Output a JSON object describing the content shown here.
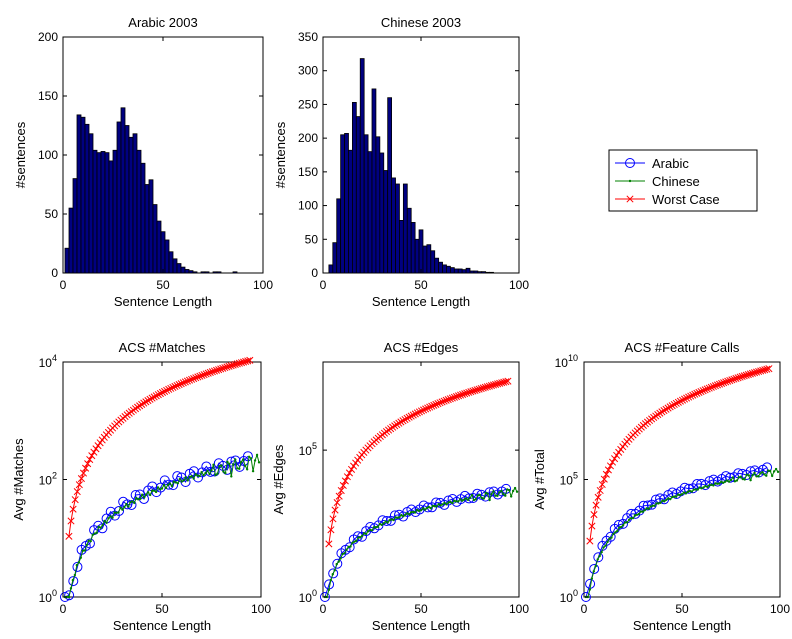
{
  "chart_data": [
    {
      "type": "bar",
      "title": "Arabic 2003",
      "xlabel": "Sentence Length",
      "ylabel": "#sentences",
      "xlim": [
        0,
        100
      ],
      "ylim": [
        0,
        200
      ],
      "xticks": [
        0,
        50,
        100
      ],
      "yticks": [
        0,
        50,
        100,
        150,
        200
      ],
      "bar_color": "#000080",
      "bin_start": 1,
      "bin_width": 2,
      "values": [
        21,
        55,
        80,
        134,
        132,
        126,
        118,
        104,
        102,
        103,
        102,
        95,
        104,
        128,
        140,
        125,
        115,
        118,
        104,
        93,
        75,
        79,
        58,
        44,
        35,
        28,
        18,
        12,
        8,
        5,
        3,
        2,
        1,
        0,
        1,
        1,
        0,
        1,
        1,
        0,
        0,
        0,
        1,
        0,
        0,
        0,
        0,
        0,
        0,
        0
      ]
    },
    {
      "type": "bar",
      "title": "Chinese 2003",
      "xlabel": "Sentence Length",
      "ylabel": "#sentences",
      "xlim": [
        0,
        100
      ],
      "ylim": [
        0,
        350
      ],
      "xticks": [
        0,
        50,
        100
      ],
      "yticks": [
        0,
        50,
        100,
        150,
        200,
        250,
        300,
        350
      ],
      "bar_color": "#000080",
      "bin_start": 3,
      "bin_width": 2,
      "values": [
        12,
        45,
        110,
        205,
        207,
        182,
        253,
        232,
        318,
        205,
        180,
        273,
        202,
        178,
        152,
        260,
        141,
        132,
        78,
        132,
        96,
        75,
        50,
        64,
        40,
        42,
        33,
        22,
        16,
        12,
        10,
        8,
        6,
        6,
        5,
        7,
        3,
        3,
        2,
        2,
        1,
        1,
        0,
        0,
        0,
        0
      ]
    },
    {
      "type": "scatter",
      "title": "ACS #Matches",
      "xlabel": "Sentence Length",
      "ylabel": "Avg #Matches",
      "xlim": [
        0,
        100
      ],
      "ylim": [
        1,
        10000
      ],
      "yscale": "log",
      "xticks": [
        0,
        50,
        100
      ],
      "yticks": [
        {
          "base": "10",
          "exp": "0",
          "value": 1
        },
        {
          "base": "10",
          "exp": "2",
          "value": 100
        },
        {
          "base": "10",
          "exp": "4",
          "value": 10000
        }
      ],
      "series": [
        {
          "name": "Arabic",
          "marker": "circle",
          "color": "#0000ff",
          "x0": 1,
          "dx": 2.1,
          "k": 0.15,
          "p": 1.6,
          "n": 45
        },
        {
          "name": "Chinese",
          "marker": "dot",
          "color": "#008000",
          "x0": 1,
          "dx": 1,
          "k": 0.15,
          "p": 1.58,
          "n": 99
        },
        {
          "name": "Worst Case",
          "marker": "x",
          "color": "#ff0000",
          "x0": 3,
          "dx": 1.05,
          "k": 1.2,
          "p": 2,
          "n": 88
        }
      ]
    },
    {
      "type": "scatter",
      "title": "ACS #Edges",
      "xlabel": "Sentence Length",
      "ylabel": "Avg #Edges",
      "xlim": [
        0,
        100
      ],
      "ylim": [
        1,
        100000000
      ],
      "yscale": "log",
      "xticks": [
        0,
        50,
        100
      ],
      "yticks": [
        {
          "base": "10",
          "exp": "0",
          "value": 1
        },
        {
          "base": "10",
          "exp": "5",
          "value": 100000
        }
      ],
      "series": [
        {
          "name": "Arabic",
          "marker": "circle",
          "color": "#0000ff",
          "x0": 1,
          "dx": 2.1,
          "k": 0.19,
          "p": 2.2,
          "n": 45
        },
        {
          "name": "Chinese",
          "marker": "dot",
          "color": "#008000",
          "x0": 1,
          "dx": 1,
          "k": 0.17,
          "p": 2.2,
          "n": 99
        },
        {
          "name": "Worst Case",
          "marker": "x",
          "color": "#ff0000",
          "x0": 3,
          "dx": 1.05,
          "k": 1.1,
          "p": 3.7,
          "n": 88
        }
      ]
    },
    {
      "type": "scatter",
      "title": "ACS #Feature Calls",
      "xlabel": "Sentence Length",
      "ylabel": "Avg #Total",
      "xlim": [
        0,
        100
      ],
      "ylim": [
        1,
        10000000000
      ],
      "yscale": "log",
      "xticks": [
        0,
        50,
        100
      ],
      "yticks": [
        {
          "base": "10",
          "exp": "0",
          "value": 1
        },
        {
          "base": "10",
          "exp": "5",
          "value": 100000
        },
        {
          "base": "10",
          "exp": "10",
          "value": 10000000000
        }
      ],
      "series": [
        {
          "name": "Arabic",
          "marker": "circle",
          "color": "#0000ff",
          "x0": 1,
          "dx": 2.1,
          "k": 0.07,
          "p": 3.35,
          "n": 45
        },
        {
          "name": "Chinese",
          "marker": "dot",
          "color": "#008000",
          "x0": 1,
          "dx": 1,
          "k": 0.06,
          "p": 3.3,
          "n": 99
        },
        {
          "name": "Worst Case",
          "marker": "x",
          "color": "#ff0000",
          "x0": 3,
          "dx": 1.05,
          "k": 1.1,
          "p": 4.9,
          "n": 88
        }
      ]
    }
  ],
  "legend": {
    "placement": "right",
    "entries": [
      {
        "label": "Arabic",
        "marker": "circle",
        "color": "#0000ff"
      },
      {
        "label": "Chinese",
        "marker": "dot",
        "color": "#008000"
      },
      {
        "label": "Worst Case",
        "marker": "x",
        "color": "#ff0000"
      }
    ]
  }
}
